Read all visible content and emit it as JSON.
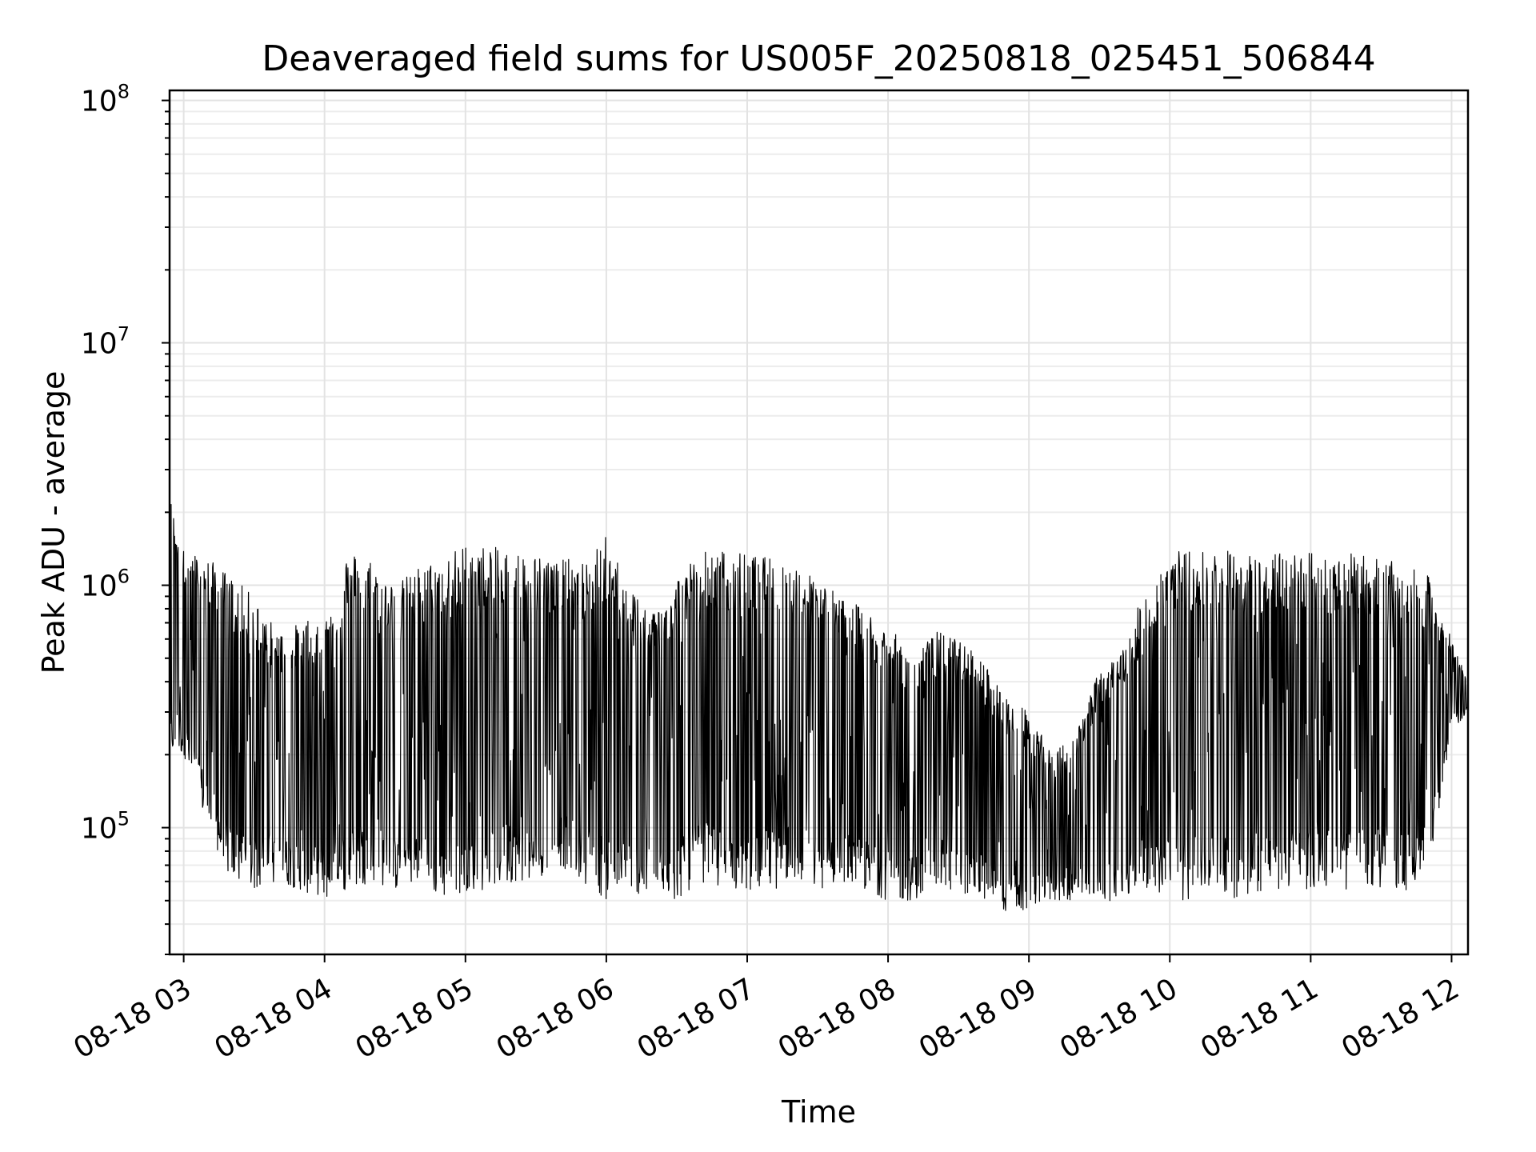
{
  "chart_data": {
    "type": "line",
    "title": "Deaveraged field sums for US005F_20250818_025451_506844",
    "xlabel": "Time",
    "ylabel": "Peak ADU - average",
    "yscale": "log",
    "ylim": [
      30000,
      110000000
    ],
    "xlim": [
      "08-18 02:54",
      "08-18 12:07"
    ],
    "x_ticks": [
      "08-18 03",
      "08-18 04",
      "08-18 05",
      "08-18 06",
      "08-18 07",
      "08-18 08",
      "08-18 09",
      "08-18 10",
      "08-18 11",
      "08-18 12"
    ],
    "y_ticks": [
      {
        "base": "10",
        "exp": "5"
      },
      {
        "base": "10",
        "exp": "6"
      },
      {
        "base": "10",
        "exp": "7"
      },
      {
        "base": "10",
        "exp": "8"
      }
    ],
    "grid": true,
    "line_color": "#000000",
    "series": [
      {
        "x": [
          "08-18 02:54",
          "08-18 03:00",
          "08-18 03:10",
          "08-18 03:20",
          "08-18 03:30",
          "08-18 03:40",
          "08-18 03:50",
          "08-18 04:00",
          "08-18 04:10",
          "08-18 04:20",
          "08-18 04:30",
          "08-18 04:40",
          "08-18 04:50",
          "08-18 05:00",
          "08-18 05:10",
          "08-18 05:20",
          "08-18 05:30",
          "08-18 05:40",
          "08-18 05:50",
          "08-18 06:00",
          "08-18 06:10",
          "08-18 06:20",
          "08-18 06:30",
          "08-18 06:40",
          "08-18 06:50",
          "08-18 07:00",
          "08-18 07:10",
          "08-18 07:20",
          "08-18 07:30",
          "08-18 07:40",
          "08-18 07:50",
          "08-18 08:00",
          "08-18 08:10",
          "08-18 08:20",
          "08-18 08:30",
          "08-18 08:40",
          "08-18 08:50",
          "08-18 09:00",
          "08-18 09:10",
          "08-18 09:20",
          "08-18 09:30",
          "08-18 09:40",
          "08-18 09:50",
          "08-18 10:00",
          "08-18 10:10",
          "08-18 10:20",
          "08-18 10:30",
          "08-18 10:40",
          "08-18 10:50",
          "08-18 11:00",
          "08-18 11:10",
          "08-18 11:20",
          "08-18 11:30",
          "08-18 11:40",
          "08-18 11:50",
          "08-18 12:00",
          "08-18 12:07"
        ],
        "high": [
          2400000,
          1400000,
          1300000,
          1100000,
          900000,
          650000,
          700000,
          750000,
          1400000,
          1300000,
          1000000,
          1200000,
          1300000,
          1500000,
          1450000,
          1400000,
          1350000,
          1300000,
          1250000,
          1600000,
          1000000,
          800000,
          1100000,
          1400000,
          1400000,
          1350000,
          1300000,
          1250000,
          1100000,
          900000,
          800000,
          700000,
          500000,
          650000,
          600000,
          500000,
          350000,
          300000,
          200000,
          250000,
          450000,
          550000,
          1000000,
          1400000,
          1400000,
          1400000,
          1400000,
          1300000,
          1400000,
          1400000,
          1350000,
          1350000,
          1300000,
          1200000,
          1100000,
          600000,
          400000
        ],
        "low": [
          200000,
          200000,
          100000,
          60000,
          55000,
          60000,
          55000,
          50000,
          55000,
          60000,
          55000,
          60000,
          50000,
          55000,
          55000,
          60000,
          60000,
          70000,
          60000,
          50000,
          55000,
          50000,
          50000,
          60000,
          55000,
          55000,
          55000,
          60000,
          55000,
          60000,
          55000,
          50000,
          50000,
          55000,
          55000,
          50000,
          45000,
          45000,
          50000,
          50000,
          50000,
          50000,
          55000,
          50000,
          50000,
          55000,
          50000,
          55000,
          55000,
          55000,
          55000,
          55000,
          55000,
          55000,
          60000,
          250000,
          300000
        ]
      }
    ]
  }
}
